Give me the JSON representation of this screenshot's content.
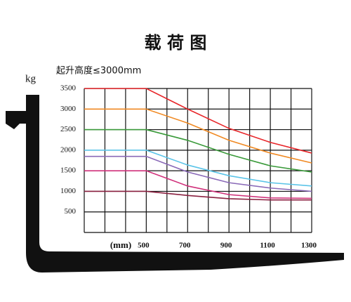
{
  "chart_data": {
    "type": "line",
    "title": "载 荷 图",
    "subtitle": "起升高度≤3000mm",
    "y_label": "kg",
    "x_label": "(mm)",
    "x": [
      200,
      500,
      700,
      900,
      1100,
      1300
    ],
    "xlim": [
      200,
      1300
    ],
    "xticks": [
      500,
      700,
      900,
      1100,
      1300
    ],
    "ylim": [
      0,
      3500
    ],
    "yticks": [
      500,
      1000,
      1500,
      2000,
      2500,
      3000,
      3500
    ],
    "grid": true,
    "series": [
      {
        "color": "#e8262a",
        "values": [
          3500,
          3500,
          3000,
          2530,
          2190,
          1930
        ]
      },
      {
        "color": "#f08a24",
        "values": [
          3000,
          3000,
          2660,
          2240,
          1930,
          1690
        ]
      },
      {
        "color": "#3a9a3a",
        "values": [
          2500,
          2500,
          2240,
          1900,
          1620,
          1470
        ]
      },
      {
        "color": "#5bc4e8",
        "values": [
          2000,
          2000,
          1640,
          1380,
          1210,
          1130
        ]
      },
      {
        "color": "#8a6ab8",
        "values": [
          1850,
          1850,
          1470,
          1210,
          1080,
          1000
        ]
      },
      {
        "color": "#d0307a",
        "values": [
          1500,
          1500,
          1130,
          920,
          840,
          830
        ]
      },
      {
        "color": "#8a2040",
        "values": [
          1000,
          1000,
          900,
          820,
          790,
          790
        ]
      }
    ]
  }
}
